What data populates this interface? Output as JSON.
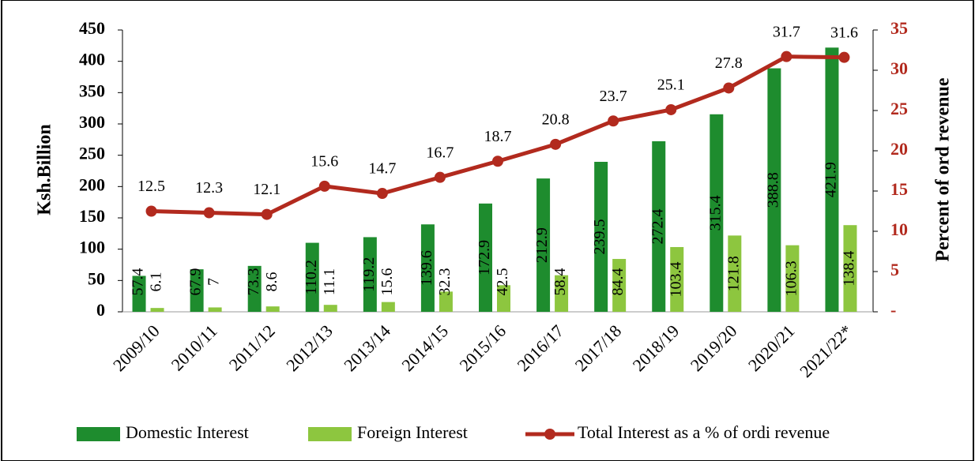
{
  "chart_data": {
    "type": "bar_line",
    "y_label": "Ksh.Billion",
    "y2_label": "Percent of ord revenue",
    "categories": [
      "2009/10",
      "2010/11",
      "2011/12",
      "2012/13",
      "2013/14",
      "2014/15",
      "2015/16",
      "2016/17",
      "2017/18",
      "2018/19",
      "2019/20",
      "2020/21",
      "2021/22*"
    ],
    "series": [
      {
        "name": "Domestic Interest",
        "color": "#1e8c2e",
        "type": "bar",
        "values": [
          57.4,
          67.9,
          73.3,
          110.2,
          119.2,
          139.6,
          172.9,
          212.9,
          239.5,
          272.4,
          315.4,
          388.8,
          421.9
        ]
      },
      {
        "name": "Foreign Interest",
        "color": "#8dc63f",
        "type": "bar",
        "values": [
          6.1,
          7,
          8.6,
          11.1,
          15.6,
          32.3,
          42.5,
          58.4,
          84.4,
          103.4,
          121.8,
          106.3,
          138.4
        ]
      },
      {
        "name": "Total Interest as a % of ordi revenue",
        "color": "#b22a1e",
        "type": "line",
        "axis": "y2",
        "values": [
          12.5,
          12.3,
          12.1,
          15.6,
          14.7,
          16.7,
          18.7,
          20.8,
          23.7,
          25.1,
          27.8,
          31.7,
          31.6
        ]
      }
    ],
    "ylim": [
      0,
      450
    ],
    "yticks": [
      0,
      50,
      100,
      150,
      200,
      250,
      300,
      350,
      400,
      450
    ],
    "y2lim": [
      0,
      35
    ],
    "y2ticks": [
      {
        "value": 0,
        "label": "-"
      },
      5,
      10,
      15,
      20,
      25,
      30,
      35
    ],
    "y2_color": "#b22a1e",
    "grid": false,
    "legend": "bottom"
  }
}
